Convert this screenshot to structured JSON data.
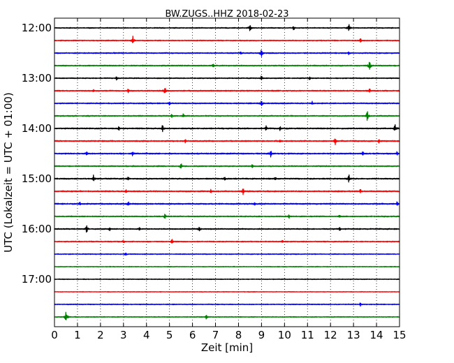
{
  "chart_data": {
    "type": "line",
    "title": "BW.ZUGS..HHZ 2018-02-23",
    "xlabel": "Zeit  [min]",
    "ylabel": "UTC (Lokalzeit = UTC + 01:00)",
    "xlim": [
      0,
      15
    ],
    "x_ticks": [
      0,
      1,
      2,
      3,
      4,
      5,
      6,
      7,
      8,
      9,
      10,
      11,
      12,
      13,
      14,
      15
    ],
    "x_tick_labels": [
      "0",
      "1",
      "2",
      "3",
      "4",
      "5",
      "6",
      "7",
      "8",
      "9",
      "10",
      "11",
      "12",
      "13",
      "14",
      "15"
    ],
    "y_ticks": [
      "12:00",
      "13:00",
      "14:00",
      "15:00",
      "16:00",
      "17:00"
    ],
    "grid": "vertical dotted",
    "colors": [
      "#000000",
      "#ff0000",
      "#0000ff",
      "#008000"
    ],
    "series": [
      {
        "row": 0,
        "start_utc": "12:00",
        "color": "#000000",
        "amplitude": 0.8,
        "events": [
          [
            8.5,
            2.2
          ],
          [
            10.4,
            1.6
          ],
          [
            12.8,
            2.5
          ]
        ]
      },
      {
        "row": 1,
        "start_utc": "12:15",
        "color": "#ff0000",
        "amplitude": 0.8,
        "events": [
          [
            3.4,
            3.0
          ],
          [
            13.3,
            1.6
          ]
        ]
      },
      {
        "row": 2,
        "start_utc": "12:30",
        "color": "#0000ff",
        "amplitude": 0.9,
        "events": [
          [
            8.1,
            1.5
          ],
          [
            9.0,
            3.2
          ],
          [
            12.8,
            1.4
          ]
        ]
      },
      {
        "row": 3,
        "start_utc": "12:45",
        "color": "#008000",
        "amplitude": 0.9,
        "events": [
          [
            6.9,
            1.6
          ],
          [
            13.7,
            3.4
          ]
        ]
      },
      {
        "row": 4,
        "start_utc": "13:00",
        "color": "#000000",
        "amplitude": 0.8,
        "events": [
          [
            2.7,
            1.8
          ],
          [
            9.0,
            1.8
          ],
          [
            11.1,
            1.4
          ]
        ]
      },
      {
        "row": 5,
        "start_utc": "13:15",
        "color": "#ff0000",
        "amplitude": 0.9,
        "events": [
          [
            1.7,
            1.3
          ],
          [
            3.2,
            1.4
          ],
          [
            4.8,
            2.8
          ],
          [
            13.7,
            1.8
          ]
        ]
      },
      {
        "row": 6,
        "start_utc": "13:30",
        "color": "#0000ff",
        "amplitude": 0.9,
        "events": [
          [
            5.0,
            1.4
          ],
          [
            9.0,
            3.0
          ],
          [
            11.2,
            1.4
          ]
        ]
      },
      {
        "row": 7,
        "start_utc": "13:45",
        "color": "#008000",
        "amplitude": 0.9,
        "events": [
          [
            5.1,
            1.8
          ],
          [
            5.6,
            1.5
          ],
          [
            13.6,
            3.2
          ]
        ]
      },
      {
        "row": 8,
        "start_utc": "14:00",
        "color": "#000000",
        "amplitude": 1.0,
        "events": [
          [
            2.8,
            1.4
          ],
          [
            4.7,
            2.6
          ],
          [
            9.2,
            2.0
          ],
          [
            9.8,
            1.6
          ],
          [
            14.8,
            3.0
          ]
        ]
      },
      {
        "row": 9,
        "start_utc": "14:15",
        "color": "#ff0000",
        "amplitude": 1.0,
        "events": [
          [
            5.7,
            1.6
          ],
          [
            9.8,
            1.5
          ],
          [
            12.2,
            2.8
          ],
          [
            14.1,
            1.4
          ]
        ]
      },
      {
        "row": 10,
        "start_utc": "14:30",
        "color": "#0000ff",
        "amplitude": 1.0,
        "events": [
          [
            1.4,
            1.5
          ],
          [
            3.4,
            2.0
          ],
          [
            9.4,
            2.6
          ],
          [
            13.4,
            1.6
          ],
          [
            14.9,
            1.8
          ]
        ]
      },
      {
        "row": 11,
        "start_utc": "14:45",
        "color": "#008000",
        "amplitude": 0.9,
        "events": [
          [
            5.5,
            2.4
          ],
          [
            8.6,
            1.3
          ]
        ]
      },
      {
        "row": 12,
        "start_utc": "15:00",
        "color": "#000000",
        "amplitude": 1.0,
        "events": [
          [
            1.7,
            2.6
          ],
          [
            3.2,
            1.6
          ],
          [
            7.4,
            1.8
          ],
          [
            9.6,
            1.6
          ],
          [
            12.8,
            2.8
          ]
        ]
      },
      {
        "row": 13,
        "start_utc": "15:15",
        "color": "#ff0000",
        "amplitude": 1.0,
        "events": [
          [
            3.1,
            1.5
          ],
          [
            6.8,
            1.4
          ],
          [
            8.2,
            2.4
          ],
          [
            13.3,
            1.8
          ]
        ]
      },
      {
        "row": 14,
        "start_utc": "15:30",
        "color": "#0000ff",
        "amplitude": 1.0,
        "events": [
          [
            1.1,
            1.3
          ],
          [
            3.2,
            2.0
          ],
          [
            8.7,
            1.3
          ],
          [
            14.9,
            1.8
          ]
        ]
      },
      {
        "row": 15,
        "start_utc": "15:45",
        "color": "#008000",
        "amplitude": 0.9,
        "events": [
          [
            4.8,
            1.8
          ],
          [
            10.2,
            1.3
          ],
          [
            12.4,
            1.3
          ]
        ]
      },
      {
        "row": 16,
        "start_utc": "16:00",
        "color": "#000000",
        "amplitude": 0.9,
        "events": [
          [
            1.4,
            3.0
          ],
          [
            2.4,
            1.4
          ],
          [
            3.7,
            1.3
          ],
          [
            6.3,
            2.0
          ],
          [
            12.4,
            1.3
          ]
        ]
      },
      {
        "row": 17,
        "start_utc": "16:15",
        "color": "#ff0000",
        "amplitude": 0.8,
        "events": [
          [
            3.0,
            1.3
          ],
          [
            5.1,
            2.2
          ],
          [
            9.9,
            1.3
          ]
        ]
      },
      {
        "row": 18,
        "start_utc": "16:30",
        "color": "#0000ff",
        "amplitude": 0.7,
        "events": [
          [
            3.1,
            1.4
          ]
        ]
      },
      {
        "row": 19,
        "start_utc": "16:45",
        "color": "#008000",
        "amplitude": 0.6,
        "events": []
      },
      {
        "row": 20,
        "start_utc": "17:00",
        "color": "#000000",
        "amplitude": 0.6,
        "events": []
      },
      {
        "row": 21,
        "start_utc": "17:15",
        "color": "#ff0000",
        "amplitude": 0.5,
        "events": []
      },
      {
        "row": 22,
        "start_utc": "17:30",
        "color": "#0000ff",
        "amplitude": 0.7,
        "events": [
          [
            13.3,
            1.4
          ]
        ]
      },
      {
        "row": 23,
        "start_utc": "17:45",
        "color": "#008000",
        "amplitude": 0.7,
        "events": [
          [
            0.5,
            3.4
          ],
          [
            6.6,
            1.6
          ]
        ]
      }
    ]
  }
}
